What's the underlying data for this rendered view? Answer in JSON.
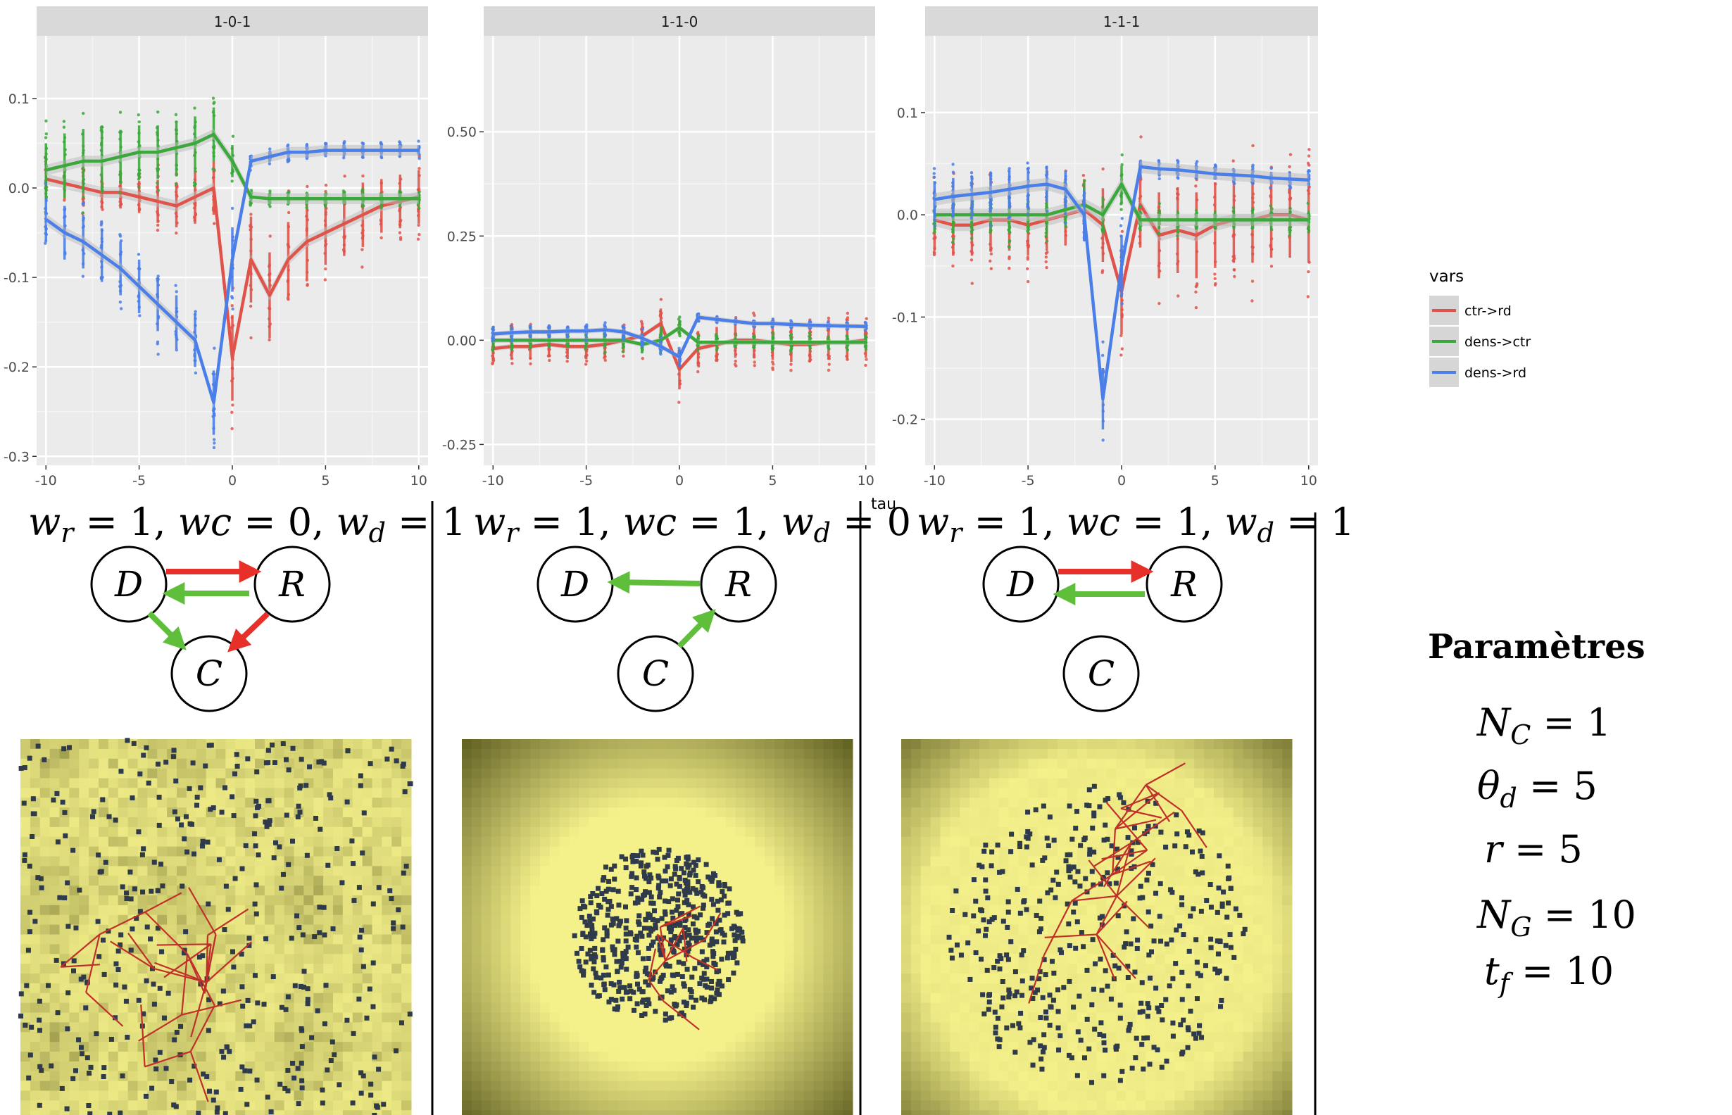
{
  "chart_data": [
    {
      "type": "line",
      "panel": "1-0-1",
      "strip_label": "1-0-1",
      "x": [
        -10,
        -9,
        -8,
        -7,
        -6,
        -5,
        -4,
        -3,
        -2,
        -1,
        0,
        1,
        2,
        3,
        4,
        5,
        6,
        7,
        8,
        9,
        10
      ],
      "xlim": [
        -10.5,
        10.5
      ],
      "ylim": [
        -0.31,
        0.17
      ],
      "x_ticks": [
        -10,
        -5,
        0,
        5,
        10
      ],
      "x_tick_labels": [
        "-10",
        "-5",
        "0",
        "5",
        "10"
      ],
      "y_ticks": [
        -0.3,
        -0.2,
        -0.1,
        0.0,
        0.1
      ],
      "y_tick_labels": [
        "-0.3",
        "-0.2",
        "-0.1",
        "0.0",
        "0.1"
      ],
      "series": [
        {
          "name": "ctr->rd",
          "color": "#e0534a",
          "values": [
            0.01,
            0.005,
            0.0,
            -0.005,
            -0.005,
            -0.01,
            -0.015,
            -0.02,
            -0.01,
            0.0,
            -0.19,
            -0.08,
            -0.12,
            -0.08,
            -0.06,
            -0.05,
            -0.04,
            -0.03,
            -0.02,
            -0.015,
            -0.01
          ],
          "spread": [
            0.03,
            0.03,
            0.03,
            0.03,
            0.03,
            0.03,
            0.04,
            0.04,
            0.05,
            0.05,
            0.08,
            0.08,
            0.08,
            0.07,
            0.07,
            0.06,
            0.06,
            0.06,
            0.05,
            0.05,
            0.05
          ]
        },
        {
          "name": "dens->ctr",
          "color": "#3aa83a",
          "values": [
            0.02,
            0.025,
            0.03,
            0.03,
            0.035,
            0.04,
            0.04,
            0.045,
            0.05,
            0.06,
            0.03,
            -0.01,
            -0.012,
            -0.012,
            -0.012,
            -0.012,
            -0.012,
            -0.012,
            -0.012,
            -0.012,
            -0.012
          ],
          "spread": [
            0.05,
            0.06,
            0.06,
            0.06,
            0.05,
            0.05,
            0.05,
            0.05,
            0.05,
            0.05,
            0.03,
            0.01,
            0.01,
            0.01,
            0.01,
            0.01,
            0.01,
            0.01,
            0.01,
            0.01,
            0.01
          ]
        },
        {
          "name": "dens->rd",
          "color": "#4a7ee8",
          "values": [
            -0.035,
            -0.05,
            -0.06,
            -0.075,
            -0.09,
            -0.11,
            -0.13,
            -0.15,
            -0.17,
            -0.24,
            -0.08,
            0.03,
            0.035,
            0.04,
            0.04,
            0.042,
            0.042,
            0.042,
            0.042,
            0.042,
            0.042
          ],
          "spread": [
            0.04,
            0.05,
            0.05,
            0.05,
            0.05,
            0.05,
            0.05,
            0.05,
            0.05,
            0.06,
            0.06,
            0.01,
            0.01,
            0.01,
            0.01,
            0.01,
            0.01,
            0.01,
            0.01,
            0.01,
            0.01
          ]
        }
      ]
    },
    {
      "type": "line",
      "panel": "1-1-0",
      "strip_label": "1-1-0",
      "x": [
        -10,
        -9,
        -8,
        -7,
        -6,
        -5,
        -4,
        -3,
        -2,
        -1,
        0,
        1,
        2,
        3,
        4,
        5,
        6,
        7,
        8,
        9,
        10
      ],
      "xlim": [
        -10.5,
        10.5
      ],
      "ylim": [
        -0.3,
        0.73
      ],
      "x_ticks": [
        -10,
        -5,
        0,
        5,
        10
      ],
      "x_tick_labels": [
        "-10",
        "-5",
        "0",
        "5",
        "10"
      ],
      "y_ticks": [
        -0.25,
        0.0,
        0.25,
        0.5
      ],
      "y_tick_labels": [
        "-0.25",
        "0.00",
        "0.25",
        "0.50"
      ],
      "series": [
        {
          "name": "ctr->rd",
          "color": "#e0534a",
          "values": [
            -0.02,
            -0.015,
            -0.015,
            -0.01,
            -0.015,
            -0.015,
            -0.01,
            0.0,
            0.01,
            0.04,
            -0.07,
            -0.02,
            -0.01,
            0.0,
            0.0,
            -0.005,
            -0.01,
            -0.01,
            -0.005,
            -0.005,
            0.0
          ],
          "spread": [
            0.05,
            0.05,
            0.05,
            0.05,
            0.05,
            0.05,
            0.05,
            0.05,
            0.05,
            0.06,
            0.08,
            0.07,
            0.07,
            0.07,
            0.07,
            0.07,
            0.07,
            0.07,
            0.07,
            0.07,
            0.07
          ]
        },
        {
          "name": "dens->ctr",
          "color": "#3aa83a",
          "values": [
            0.0,
            0.0,
            0.0,
            0.0,
            0.0,
            0.0,
            0.0,
            0.0,
            -0.01,
            0.0,
            0.03,
            -0.005,
            -0.005,
            -0.005,
            -0.005,
            -0.005,
            -0.005,
            -0.005,
            -0.005,
            -0.005,
            -0.005
          ],
          "spread": [
            0.03,
            0.03,
            0.03,
            0.03,
            0.03,
            0.03,
            0.03,
            0.03,
            0.03,
            0.03,
            0.03,
            0.02,
            0.02,
            0.02,
            0.02,
            0.02,
            0.02,
            0.02,
            0.02,
            0.02,
            0.02
          ]
        },
        {
          "name": "dens->rd",
          "color": "#4a7ee8",
          "values": [
            0.015,
            0.018,
            0.02,
            0.02,
            0.022,
            0.022,
            0.025,
            0.02,
            0.005,
            -0.015,
            -0.04,
            0.055,
            0.05,
            0.045,
            0.04,
            0.04,
            0.038,
            0.036,
            0.035,
            0.034,
            0.033
          ],
          "spread": [
            0.02,
            0.02,
            0.02,
            0.02,
            0.02,
            0.02,
            0.02,
            0.02,
            0.02,
            0.02,
            0.03,
            0.01,
            0.01,
            0.01,
            0.01,
            0.01,
            0.01,
            0.01,
            0.01,
            0.01,
            0.01
          ]
        }
      ]
    },
    {
      "type": "line",
      "panel": "1-1-1",
      "strip_label": "1-1-1",
      "x": [
        -10,
        -9,
        -8,
        -7,
        -6,
        -5,
        -4,
        -3,
        -2,
        -1,
        0,
        1,
        2,
        3,
        4,
        5,
        6,
        7,
        8,
        9,
        10
      ],
      "xlim": [
        -10.5,
        10.5
      ],
      "ylim": [
        -0.245,
        0.175
      ],
      "x_ticks": [
        -10,
        -5,
        0,
        5,
        10
      ],
      "x_tick_labels": [
        "-10",
        "-5",
        "0",
        "5",
        "10"
      ],
      "y_ticks": [
        -0.2,
        -0.1,
        0.0,
        0.1
      ],
      "y_tick_labels": [
        "-0.2",
        "-0.1",
        "0.0",
        "0.1"
      ],
      "series": [
        {
          "name": "ctr->rd",
          "color": "#e0534a",
          "values": [
            -0.005,
            -0.01,
            -0.01,
            -0.005,
            -0.005,
            -0.01,
            -0.005,
            0.0,
            0.005,
            -0.01,
            -0.075,
            0.01,
            -0.02,
            -0.015,
            -0.02,
            -0.01,
            -0.005,
            -0.005,
            0.0,
            0.0,
            -0.005
          ],
          "spread": [
            0.05,
            0.05,
            0.05,
            0.05,
            0.05,
            0.05,
            0.05,
            0.05,
            0.05,
            0.06,
            0.07,
            0.07,
            0.07,
            0.07,
            0.07,
            0.07,
            0.07,
            0.07,
            0.07,
            0.07,
            0.07
          ]
        },
        {
          "name": "dens->ctr",
          "color": "#3aa83a",
          "values": [
            0.0,
            0.0,
            0.0,
            0.0,
            0.0,
            0.0,
            0.0,
            0.005,
            0.01,
            0.0,
            0.03,
            -0.005,
            -0.005,
            -0.005,
            -0.005,
            -0.005,
            -0.005,
            -0.005,
            -0.005,
            -0.005,
            -0.005
          ],
          "spread": [
            0.03,
            0.03,
            0.03,
            0.03,
            0.03,
            0.03,
            0.03,
            0.03,
            0.03,
            0.03,
            0.03,
            0.015,
            0.015,
            0.015,
            0.015,
            0.015,
            0.015,
            0.015,
            0.015,
            0.015,
            0.015
          ]
        },
        {
          "name": "dens->rd",
          "color": "#4a7ee8",
          "values": [
            0.015,
            0.018,
            0.02,
            0.022,
            0.025,
            0.028,
            0.03,
            0.025,
            0.0,
            -0.18,
            -0.05,
            0.047,
            0.045,
            0.044,
            0.042,
            0.04,
            0.039,
            0.038,
            0.036,
            0.035,
            0.034
          ],
          "spread": [
            0.03,
            0.03,
            0.03,
            0.03,
            0.03,
            0.03,
            0.03,
            0.03,
            0.04,
            0.05,
            0.05,
            0.01,
            0.01,
            0.01,
            0.01,
            0.01,
            0.01,
            0.01,
            0.01,
            0.01,
            0.01
          ]
        }
      ]
    }
  ],
  "x_axis_title": "tau",
  "legend": {
    "title": "vars",
    "placement": "right",
    "entries": [
      {
        "label": "ctr->rd",
        "color": "#e0534a"
      },
      {
        "label": "dens->ctr",
        "color": "#3aa83a"
      },
      {
        "label": "dens->rd",
        "color": "#4a7ee8"
      }
    ]
  },
  "weight_labels": [
    {
      "wr": "1",
      "wc": "0",
      "wd": "1"
    },
    {
      "wr": "1",
      "wc": "1",
      "wd": "0"
    },
    {
      "wr": "1",
      "wc": "1",
      "wd": "1"
    }
  ],
  "graphs": {
    "node_labels": {
      "d": "D",
      "r": "R",
      "c": "C"
    },
    "edge_colors": {
      "red": "#e8302a",
      "green": "#5fbf3a"
    }
  },
  "parameters": {
    "title": "Paramètres",
    "nc": "1",
    "theta_d": "5",
    "r": "5",
    "ng": "10",
    "tf": "10"
  },
  "map_colors": {
    "base": "#f4f08a",
    "dark": "#5a5a1e",
    "building": "#2f3a4a",
    "road": "#c0302a"
  }
}
